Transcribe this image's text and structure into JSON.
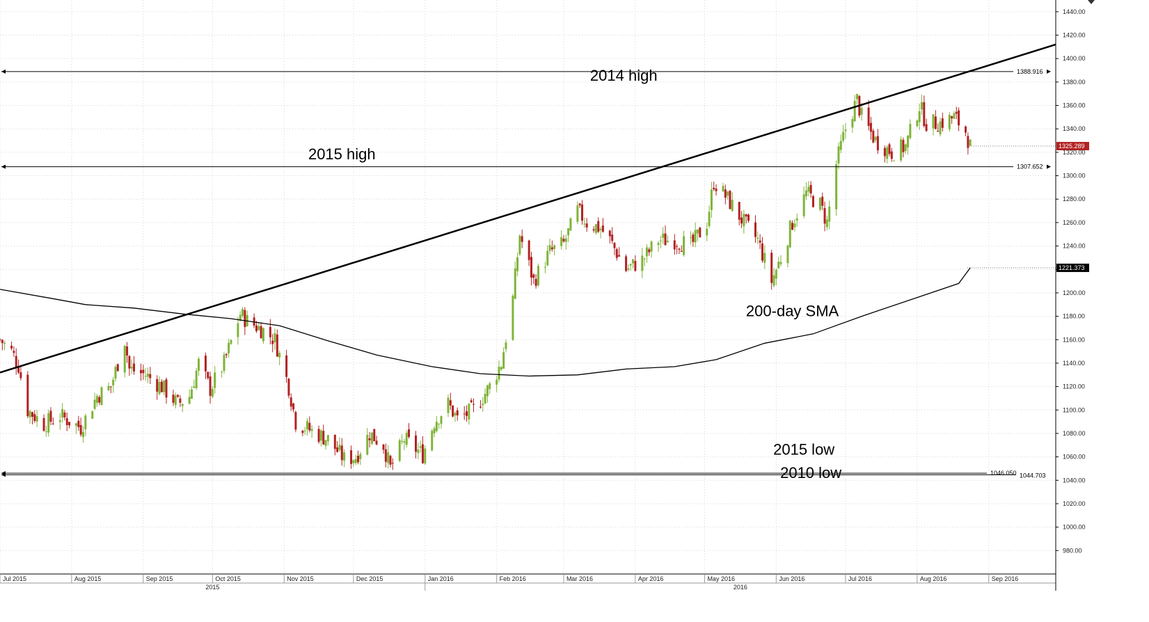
{
  "chart_data": {
    "type": "candlestick",
    "ylim": [
      960,
      1450
    ],
    "y_ticks": [
      "980.00",
      "1000.00",
      "1020.00",
      "1040.00",
      "1060.00",
      "1080.00",
      "1100.00",
      "1120.00",
      "1140.00",
      "1160.00",
      "1180.00",
      "1200.00",
      "1220.00",
      "1240.00",
      "1260.00",
      "1280.00",
      "1300.00",
      "1320.00",
      "1340.00",
      "1360.00",
      "1380.00",
      "1400.00",
      "1420.00",
      "1440.00"
    ],
    "x_range": [
      "2015-07-01",
      "2016-09-30"
    ],
    "month_labels": [
      "Jul 2015",
      "Aug 2015",
      "Sep 2015",
      "Oct 2015",
      "Nov 2015",
      "Dec 2015",
      "Jan 2016",
      "Feb 2016",
      "Mar 2016",
      "Apr 2016",
      "May 2016",
      "Jun 2016",
      "Jul 2016",
      "Aug 2016",
      "Sep 2016"
    ],
    "year_labels": [
      "2015",
      "2016"
    ],
    "up_color": "#7fb439",
    "down_color": "#b22222",
    "close_path": [
      [
        "2015-07-01",
        1160
      ],
      [
        "2015-07-06",
        1150
      ],
      [
        "2015-07-09",
        1138
      ],
      [
        "2015-07-13",
        1100
      ],
      [
        "2015-07-20",
        1088
      ],
      [
        "2015-07-27",
        1095
      ],
      [
        "2015-08-05",
        1085
      ],
      [
        "2015-08-12",
        1112
      ],
      [
        "2015-08-18",
        1120
      ],
      [
        "2015-08-24",
        1160
      ],
      [
        "2015-08-26",
        1135
      ],
      [
        "2015-09-02",
        1130
      ],
      [
        "2015-09-09",
        1120
      ],
      [
        "2015-09-16",
        1105
      ],
      [
        "2015-09-21",
        1112
      ],
      [
        "2015-09-25",
        1140
      ],
      [
        "2015-09-30",
        1118
      ],
      [
        "2015-10-06",
        1140
      ],
      [
        "2015-10-13",
        1182
      ],
      [
        "2015-10-16",
        1176
      ],
      [
        "2015-10-23",
        1168
      ],
      [
        "2015-10-28",
        1160
      ],
      [
        "2015-11-03",
        1120
      ],
      [
        "2015-11-06",
        1090
      ],
      [
        "2015-11-13",
        1082
      ],
      [
        "2015-11-20",
        1075
      ],
      [
        "2015-11-27",
        1058
      ],
      [
        "2015-12-02",
        1060
      ],
      [
        "2015-12-08",
        1080
      ],
      [
        "2015-12-14",
        1070
      ],
      [
        "2015-12-17",
        1050
      ],
      [
        "2015-12-23",
        1075
      ],
      [
        "2015-12-31",
        1062
      ],
      [
        "2016-01-05",
        1090
      ],
      [
        "2016-01-11",
        1105
      ],
      [
        "2016-01-15",
        1092
      ],
      [
        "2016-01-22",
        1100
      ],
      [
        "2016-01-29",
        1120
      ],
      [
        "2016-02-03",
        1140
      ],
      [
        "2016-02-08",
        1195
      ],
      [
        "2016-02-11",
        1250
      ],
      [
        "2016-02-17",
        1210
      ],
      [
        "2016-02-24",
        1235
      ],
      [
        "2016-03-01",
        1242
      ],
      [
        "2016-03-07",
        1270
      ],
      [
        "2016-03-11",
        1260
      ],
      [
        "2016-03-17",
        1255
      ],
      [
        "2016-03-21",
        1245
      ],
      [
        "2016-03-28",
        1220
      ],
      [
        "2016-04-04",
        1228
      ],
      [
        "2016-04-11",
        1245
      ],
      [
        "2016-04-18",
        1245
      ],
      [
        "2016-04-25",
        1240
      ],
      [
        "2016-05-02",
        1260
      ],
      [
        "2016-05-05",
        1295
      ],
      [
        "2016-05-11",
        1280
      ],
      [
        "2016-05-18",
        1260
      ],
      [
        "2016-05-24",
        1245
      ],
      [
        "2016-05-30",
        1210
      ],
      [
        "2016-06-03",
        1230
      ],
      [
        "2016-06-08",
        1260
      ],
      [
        "2016-06-14",
        1285
      ],
      [
        "2016-06-20",
        1275
      ],
      [
        "2016-06-23",
        1260
      ],
      [
        "2016-06-27",
        1310
      ],
      [
        "2016-07-01",
        1340
      ],
      [
        "2016-07-06",
        1365
      ],
      [
        "2016-07-08",
        1350
      ],
      [
        "2016-07-14",
        1330
      ],
      [
        "2016-07-21",
        1320
      ],
      [
        "2016-07-27",
        1325
      ],
      [
        "2016-08-02",
        1360
      ],
      [
        "2016-08-05",
        1345
      ],
      [
        "2016-08-11",
        1345
      ],
      [
        "2016-08-17",
        1350
      ],
      [
        "2016-08-22",
        1338
      ],
      [
        "2016-08-24",
        1325
      ]
    ],
    "sma_200": [
      [
        "2015-07-01",
        1203
      ],
      [
        "2015-07-24",
        1195
      ],
      [
        "2015-08-07",
        1190
      ],
      [
        "2015-08-28",
        1187
      ],
      [
        "2015-09-18",
        1182
      ],
      [
        "2015-10-09",
        1178
      ],
      [
        "2015-10-30",
        1172
      ],
      [
        "2015-11-20",
        1159
      ],
      [
        "2015-12-11",
        1147
      ],
      [
        "2016-01-04",
        1137
      ],
      [
        "2016-01-25",
        1131
      ],
      [
        "2016-02-15",
        1129
      ],
      [
        "2016-03-07",
        1130
      ],
      [
        "2016-03-28",
        1135
      ],
      [
        "2016-04-18",
        1137
      ],
      [
        "2016-05-06",
        1143
      ],
      [
        "2016-05-27",
        1157
      ],
      [
        "2016-06-17",
        1165
      ],
      [
        "2016-07-08",
        1180
      ],
      [
        "2016-07-29",
        1194
      ],
      [
        "2016-08-19",
        1208
      ],
      [
        "2016-08-24",
        1221.373
      ]
    ],
    "trendline": {
      "from": [
        "2015-07-01",
        1132
      ],
      "to": [
        "2016-09-30",
        1412
      ]
    },
    "horizontal_levels": [
      {
        "value": 1388.916,
        "label": "1388.916"
      },
      {
        "value": 1307.652,
        "label": "1307.652"
      },
      {
        "value": 1046.05,
        "label": "1046.050"
      },
      {
        "value": 1044.703,
        "label": "1044.703"
      }
    ],
    "current_price": {
      "value": 1325.289,
      "label": "1325.289",
      "color": "#b22222"
    },
    "sma_value": {
      "value": 1221.373,
      "label": "1221.373",
      "color": "#000000"
    },
    "annotations": [
      {
        "text": "2014 high",
        "date": "2016-03-27",
        "price": 1381
      },
      {
        "text": "2015 high",
        "date": "2015-11-26",
        "price": 1314
      },
      {
        "text": "200-day SMA",
        "date": "2016-06-08",
        "price": 1180
      },
      {
        "text": "2015 low",
        "date": "2016-06-13",
        "price": 1062
      },
      {
        "text": "2010 low",
        "date": "2016-06-16",
        "price": 1042
      }
    ]
  }
}
